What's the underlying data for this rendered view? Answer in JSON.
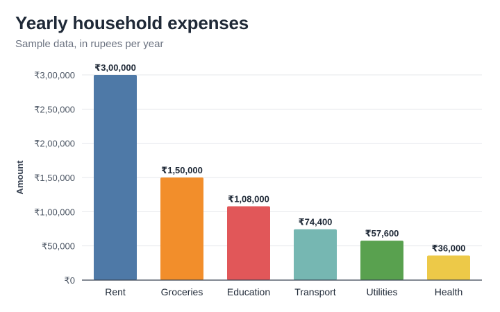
{
  "header": {
    "title": "Yearly household expenses",
    "subtitle": "Sample data, in rupees per year"
  },
  "chart_data": {
    "type": "bar",
    "title": "Yearly household expenses",
    "subtitle": "Sample data, in rupees per year",
    "xlabel": "",
    "ylabel": "Amount",
    "ylim": [
      0,
      300000
    ],
    "grid": true,
    "categories": [
      "Rent",
      "Groceries",
      "Education",
      "Transport",
      "Utilities",
      "Health"
    ],
    "values": [
      300000,
      150000,
      108000,
      74400,
      57600,
      36000
    ],
    "value_labels": [
      "₹3,00,000",
      "₹1,50,000",
      "₹1,08,000",
      "₹74,400",
      "₹57,600",
      "₹36,000"
    ],
    "y_ticks": [
      0,
      50000,
      100000,
      150000,
      200000,
      250000,
      300000
    ],
    "y_tick_labels": [
      "₹0",
      "₹50,000",
      "₹1,00,000",
      "₹1,50,000",
      "₹2,00,000",
      "₹2,50,000",
      "₹3,00,000"
    ],
    "colors": [
      "#4e79a7",
      "#f28e2b",
      "#e15759",
      "#76b7b2",
      "#59a14f",
      "#edc948"
    ]
  }
}
